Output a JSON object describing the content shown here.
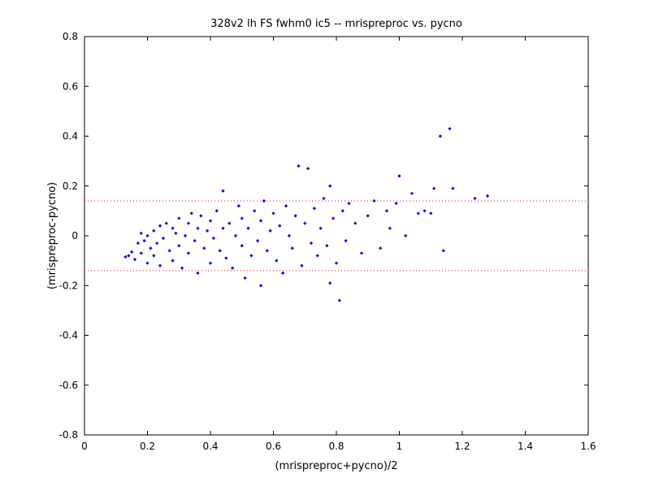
{
  "chart_data": {
    "type": "scatter",
    "title": "328v2 lh FS fwhm0 ic5 -- mrispreproc vs. pycno",
    "xlabel": "(mrispreproc+pycno)/2",
    "ylabel": "(mrispreproc-pycno)",
    "xlim": [
      0,
      1.6
    ],
    "ylim": [
      -0.8,
      0.8
    ],
    "xticks": [
      "0",
      "0.2",
      "0.4",
      "0.6",
      "0.8",
      "1",
      "1.2",
      "1.4",
      "1.6"
    ],
    "yticks": [
      "-0.8",
      "-0.6",
      "-0.4",
      "-0.2",
      "0",
      "0.2",
      "0.4",
      "0.6",
      "0.8"
    ],
    "grid": false,
    "reference_lines": [
      {
        "y": 0.14,
        "style": "dotted",
        "color": "#ff0000"
      },
      {
        "y": -0.14,
        "style": "dotted",
        "color": "#ff0000"
      }
    ],
    "series": [
      {
        "color": "#0000ff",
        "marker": "point",
        "points": [
          [
            0.13,
            -0.085
          ],
          [
            0.14,
            -0.08
          ],
          [
            0.15,
            -0.065
          ],
          [
            0.16,
            -0.095
          ],
          [
            0.17,
            -0.03
          ],
          [
            0.18,
            -0.07
          ],
          [
            0.18,
            0.01
          ],
          [
            0.19,
            -0.02
          ],
          [
            0.2,
            -0.11
          ],
          [
            0.2,
            0.0
          ],
          [
            0.21,
            -0.05
          ],
          [
            0.22,
            0.02
          ],
          [
            0.22,
            -0.08
          ],
          [
            0.23,
            -0.03
          ],
          [
            0.24,
            0.04
          ],
          [
            0.24,
            -0.12
          ],
          [
            0.25,
            -0.01
          ],
          [
            0.26,
            0.05
          ],
          [
            0.27,
            -0.06
          ],
          [
            0.28,
            0.03
          ],
          [
            0.28,
            -0.1
          ],
          [
            0.29,
            0.01
          ],
          [
            0.3,
            -0.04
          ],
          [
            0.3,
            0.07
          ],
          [
            0.31,
            -0.13
          ],
          [
            0.32,
            0.0
          ],
          [
            0.33,
            0.05
          ],
          [
            0.33,
            -0.07
          ],
          [
            0.34,
            0.09
          ],
          [
            0.35,
            -0.02
          ],
          [
            0.36,
            0.03
          ],
          [
            0.36,
            -0.15
          ],
          [
            0.37,
            0.08
          ],
          [
            0.38,
            -0.05
          ],
          [
            0.39,
            0.02
          ],
          [
            0.4,
            -0.11
          ],
          [
            0.4,
            0.06
          ],
          [
            0.41,
            -0.01
          ],
          [
            0.42,
            0.1
          ],
          [
            0.43,
            -0.06
          ],
          [
            0.44,
            0.03
          ],
          [
            0.44,
            0.18
          ],
          [
            0.45,
            -0.09
          ],
          [
            0.46,
            0.05
          ],
          [
            0.47,
            -0.13
          ],
          [
            0.48,
            0.0
          ],
          [
            0.49,
            0.12
          ],
          [
            0.5,
            -0.04
          ],
          [
            0.5,
            0.07
          ],
          [
            0.51,
            -0.17
          ],
          [
            0.52,
            0.03
          ],
          [
            0.53,
            -0.08
          ],
          [
            0.54,
            0.1
          ],
          [
            0.55,
            -0.02
          ],
          [
            0.56,
            0.06
          ],
          [
            0.56,
            -0.2
          ],
          [
            0.57,
            0.14
          ],
          [
            0.58,
            -0.06
          ],
          [
            0.59,
            0.02
          ],
          [
            0.6,
            0.09
          ],
          [
            0.61,
            -0.1
          ],
          [
            0.62,
            0.04
          ],
          [
            0.63,
            -0.15
          ],
          [
            0.64,
            0.12
          ],
          [
            0.65,
            0.0
          ],
          [
            0.66,
            -0.05
          ],
          [
            0.67,
            0.08
          ],
          [
            0.68,
            0.28
          ],
          [
            0.69,
            -0.12
          ],
          [
            0.7,
            0.05
          ],
          [
            0.71,
            0.27
          ],
          [
            0.72,
            -0.03
          ],
          [
            0.73,
            0.11
          ],
          [
            0.74,
            -0.08
          ],
          [
            0.75,
            0.03
          ],
          [
            0.76,
            0.15
          ],
          [
            0.77,
            -0.04
          ],
          [
            0.78,
            0.2
          ],
          [
            0.78,
            -0.19
          ],
          [
            0.79,
            0.07
          ],
          [
            0.8,
            -0.11
          ],
          [
            0.81,
            -0.26
          ],
          [
            0.82,
            0.1
          ],
          [
            0.83,
            -0.02
          ],
          [
            0.84,
            0.13
          ],
          [
            0.86,
            0.05
          ],
          [
            0.88,
            -0.07
          ],
          [
            0.9,
            0.08
          ],
          [
            0.92,
            0.14
          ],
          [
            0.94,
            -0.05
          ],
          [
            0.96,
            0.1
          ],
          [
            0.97,
            0.03
          ],
          [
            0.99,
            0.13
          ],
          [
            1.0,
            0.24
          ],
          [
            1.02,
            0.0
          ],
          [
            1.04,
            0.17
          ],
          [
            1.06,
            0.09
          ],
          [
            1.08,
            0.1
          ],
          [
            1.1,
            0.09
          ],
          [
            1.11,
            0.19
          ],
          [
            1.13,
            0.4
          ],
          [
            1.14,
            -0.06
          ],
          [
            1.16,
            0.43
          ],
          [
            1.17,
            0.19
          ],
          [
            1.24,
            0.15
          ],
          [
            1.28,
            0.16
          ]
        ]
      }
    ]
  }
}
